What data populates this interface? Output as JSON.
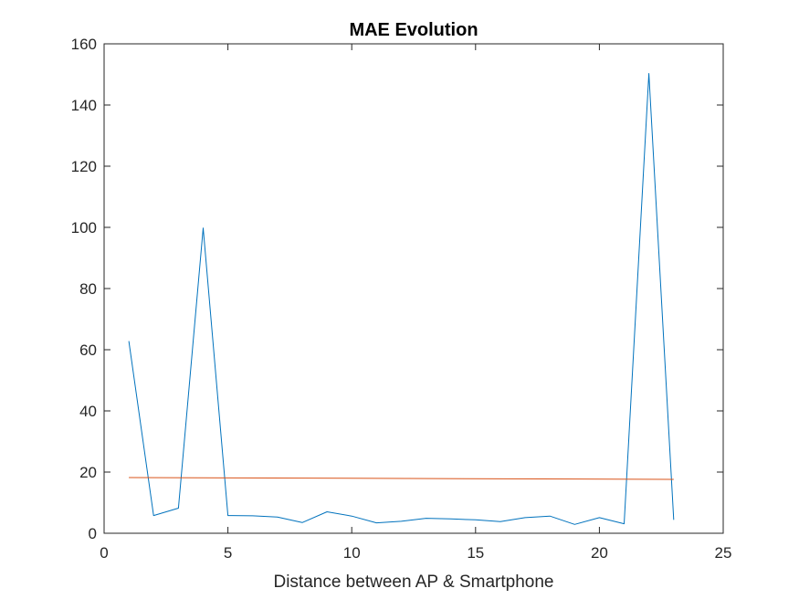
{
  "chart_data": {
    "type": "line",
    "title": "MAE Evolution",
    "xlabel": "Distance between AP & Smartphone",
    "ylabel": "",
    "xlim": [
      0,
      25
    ],
    "ylim": [
      0,
      160
    ],
    "xticks": [
      0,
      5,
      10,
      15,
      20,
      25
    ],
    "yticks": [
      0,
      20,
      40,
      60,
      80,
      100,
      120,
      140,
      160
    ],
    "grid": false,
    "legend": "none",
    "series": [
      {
        "color": "#0072BD",
        "x": [
          1,
          2,
          3,
          4,
          5,
          6,
          7,
          8,
          9,
          10,
          11,
          12,
          13,
          14,
          15,
          16,
          17,
          18,
          19,
          20,
          21,
          22,
          23
        ],
        "y": [
          62.8,
          5.8,
          8.2,
          99.8,
          5.8,
          5.7,
          5.3,
          3.5,
          7.0,
          5.6,
          3.4,
          3.9,
          4.9,
          4.7,
          4.4,
          3.8,
          5.1,
          5.6,
          2.9,
          5.1,
          3.1,
          150.3,
          4.4
        ]
      },
      {
        "color": "#D95319",
        "x": [
          1,
          23
        ],
        "y": [
          18.2,
          17.6
        ]
      }
    ]
  }
}
